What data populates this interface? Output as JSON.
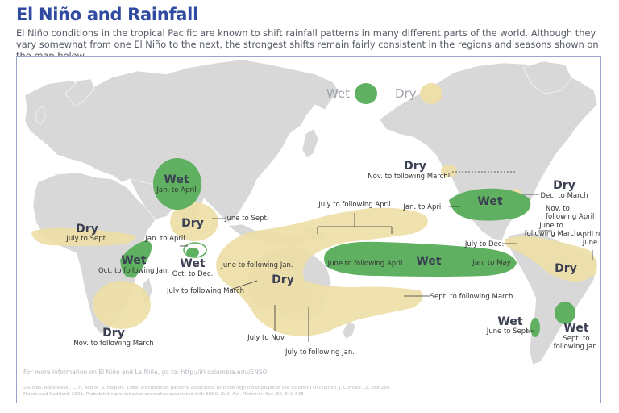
{
  "title": "El Niño and Rainfall",
  "intro": "El Niño conditions in the tropical Pacific are known to shift rainfall patterns in many different parts of the world. Although they vary somewhat from one El Niño to the next, the strongest shifts remain fairly consistent in the regions and seasons shown on the map below.",
  "colors": {
    "wet": "#5fb060",
    "dry": "#eedfa8",
    "land": "#d8d8d8",
    "title": "#2f4aa0"
  },
  "legend": {
    "wet": "Wet",
    "dry": "Dry"
  },
  "regions": {
    "africa_west_dry": {
      "word": "Dry",
      "season": "July to Sept."
    },
    "central_asia_wet": {
      "word": "Wet",
      "season": "Jan. to April"
    },
    "india_dry": {
      "word": "Dry",
      "season": "June to Sept."
    },
    "india_sri_lanka": {
      "season": "Jan. to April"
    },
    "south_india_wet": {
      "word": "Wet",
      "season": "Oct. to Dec."
    },
    "east_africa_wet": {
      "word": "Wet",
      "season": "Oct. to following Jan."
    },
    "southern_africa_dry": {
      "word": "Dry",
      "season": "Nov. to following March"
    },
    "indonesia_dry": {
      "word": "Dry",
      "season": "June to following Jan."
    },
    "australia_dry": {
      "season": "July to following March"
    },
    "australia_southwest": {
      "season": "July to Nov."
    },
    "australia_southeast": {
      "season": "July to following Jan."
    },
    "pacific_north_dry": {
      "season": "July to following April"
    },
    "pacific_wet": {
      "word": "Wet",
      "season_left": "June to following April",
      "season_right": "Jan. to May"
    },
    "pacific_south_dry": {
      "season": "Sept. to following March"
    },
    "usa_northwest_dry": {
      "word": "Dry",
      "season": "Nov. to following March"
    },
    "usa_south_wet": {
      "word": "Wet",
      "season_left": "Jan. to April",
      "season_right": "Nov. to following April"
    },
    "usa_east_dry": {
      "word": "Dry",
      "season": "Dec. to March"
    },
    "central_america_dry": {
      "season_left": "July to Dec.",
      "season_right": "June to following March"
    },
    "brazil_dry": {
      "word": "Dry",
      "season": "April to June"
    },
    "chile_wet": {
      "word": "Wet",
      "season": "June to Sept."
    },
    "argentina_wet": {
      "word": "Wet",
      "season": "Sept. to following Jan."
    }
  },
  "footer": {
    "more_info": "For more information on El Niño and La Niña, go to: http://iri.columbia.edu/ENSO",
    "source_1": "Sources:  Ropelewski, C. F., and M. S. Halpert, 1989: Precipitation patterns associated with the high index phase of the Southern Oscillation. J. Climate., 2, 268-284.",
    "source_2": "Mason and Goddard, 2001: Probabilistic precipitation anomalies associated with ENSO. Bull. Am. Meteorol. Soc. 82, 619-638."
  }
}
